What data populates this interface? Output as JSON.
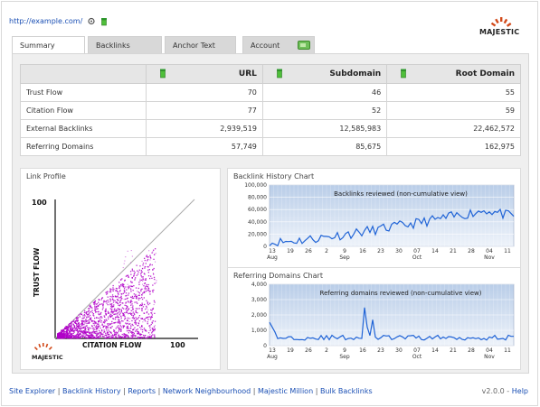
{
  "header": {
    "url_label": "http://example.com/",
    "logo_text": "MAJESTIC"
  },
  "tabs": [
    {
      "label": "Summary",
      "active": true
    },
    {
      "label": "Backlinks",
      "active": false
    },
    {
      "label": "Anchor Text",
      "active": false
    },
    {
      "label": "Account",
      "active": false
    }
  ],
  "table": {
    "columns": [
      "",
      "URL",
      "Subdomain",
      "Root Domain"
    ],
    "rows": [
      {
        "label": "Trust Flow",
        "url": "70",
        "subdomain": "46",
        "root": "55"
      },
      {
        "label": "Citation Flow",
        "url": "77",
        "subdomain": "52",
        "root": "59"
      },
      {
        "label": "External Backlinks",
        "url": "2,939,519",
        "subdomain": "12,585,983",
        "root": "22,462,572"
      },
      {
        "label": "Referring Domains",
        "url": "57,749",
        "subdomain": "85,675",
        "root": "162,975"
      }
    ]
  },
  "link_profile": {
    "title": "Link Profile",
    "y_label": "TRUST FLOW",
    "x_label": "CITATION FLOW",
    "y_max_label": "100",
    "x_max_label": "100",
    "logo_text": "MAJESTIC"
  },
  "charts": [
    {
      "box_title": "Backlink History Chart",
      "inner_title": "Backlinks reviewed (non-cumulative view)",
      "y_ticks": [
        "100,000",
        "80,000",
        "60,000",
        "40,000",
        "20,000",
        "0"
      ],
      "x_ticks": [
        "13",
        "19",
        "26",
        "2",
        "9",
        "16",
        "23",
        "30",
        "07",
        "14",
        "21",
        "28",
        "04",
        "11"
      ],
      "month_labels": [
        "Aug",
        "Sep",
        "Oct",
        "Nov"
      ]
    },
    {
      "box_title": "Referring Domains Chart",
      "inner_title": "Referring domains reviewed (non-cumulative view)",
      "y_ticks": [
        "4,000",
        "3,000",
        "2,000",
        "1,000",
        "0"
      ],
      "x_ticks": [
        "13",
        "19",
        "26",
        "2",
        "9",
        "16",
        "23",
        "30",
        "07",
        "14",
        "21",
        "28",
        "04",
        "11"
      ],
      "month_labels": [
        "Aug",
        "Sep",
        "Oct",
        "Nov"
      ]
    }
  ],
  "footer": {
    "links": [
      "Site Explorer",
      "Backlink History",
      "Reports",
      "Network Neighbourhood",
      "Majestic Million",
      "Bulk Backlinks"
    ],
    "version": "v2.0.0",
    "help": "Help"
  },
  "colors": {
    "link": "#1a4fb4",
    "chart_line": "#1f63d6",
    "scatter": "#b000c8",
    "chart_bg_top": "#b9cde8",
    "chart_bg_bottom": "#eef3fa"
  }
}
